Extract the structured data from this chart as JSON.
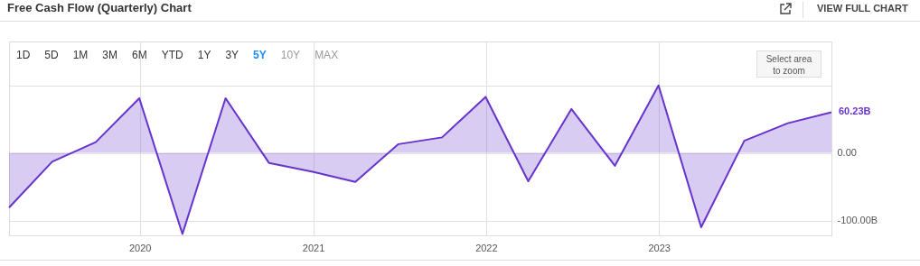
{
  "chart_data": {
    "type": "area",
    "title": "Free Cash Flow (Quarterly) Chart",
    "annotations": [
      "VIEW FULL CHART",
      "1D",
      "5D",
      "1M",
      "3M",
      "6M",
      "YTD",
      "1Y",
      "3Y",
      "5Y",
      "10Y",
      "MAX",
      "Select area\nto zoom"
    ],
    "x": [
      "2019-03-31",
      "2019-06-30",
      "2019-09-30",
      "2019-12-31",
      "2020-03-31",
      "2020-06-30",
      "2020-09-30",
      "2020-12-31",
      "2021-03-31",
      "2021-06-30",
      "2021-09-30",
      "2021-12-31",
      "2022-03-31",
      "2022-06-30",
      "2022-09-30",
      "2022-12-31",
      "2023-03-31",
      "2023-06-30",
      "2023-09-30",
      "2023-12-31"
    ],
    "series": [
      {
        "color": "#6633cc",
        "values": [
          -81,
          -13,
          16,
          81,
          -120,
          81,
          -15,
          -28,
          -43,
          13,
          23,
          83,
          -42,
          65,
          -19,
          100,
          -110,
          18,
          44,
          60.23
        ],
        "value_labels": [
          null,
          null,
          null,
          null,
          null,
          null,
          null,
          null,
          null,
          null,
          null,
          null,
          null,
          null,
          null,
          null,
          null,
          null,
          null,
          "60.23B"
        ]
      }
    ],
    "xlim": [
      "2019-03-31",
      "2023-12-31"
    ],
    "xticks": [
      "2020",
      "2021",
      "2022",
      "2023"
    ],
    "ylim": [
      -122,
      165
    ],
    "yticks": [
      {
        "value": -100,
        "label": "-100.00B"
      },
      {
        "value": 0,
        "label": "0.00"
      },
      {
        "value": 100,
        "label": null
      }
    ],
    "grid": true
  }
}
